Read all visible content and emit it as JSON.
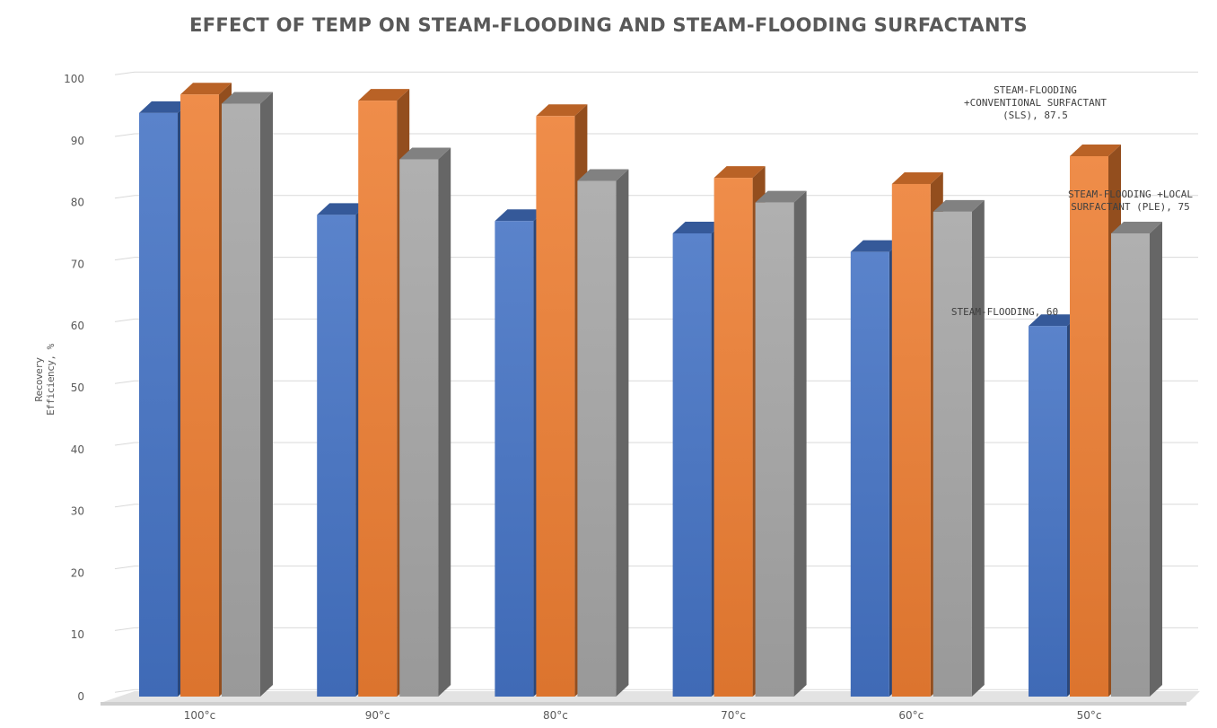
{
  "chart_data": {
    "type": "bar",
    "style": "3d-clustered-column",
    "title": "EFFECT OF TEMP ON STEAM-FLOODING AND STEAM-FLOODING SURFACTANTS",
    "ylabel": "Recovery Efficiency, %",
    "xlabel": "",
    "ylim": [
      0,
      100
    ],
    "yticks": [
      "0",
      "10",
      "20",
      "30",
      "40",
      "50",
      "60",
      "70",
      "80",
      "90",
      "100"
    ],
    "grid": true,
    "legend": "none",
    "categories": [
      "100°c",
      "90°c",
      "80°c",
      "70°c",
      "60°c",
      "50°c"
    ],
    "series": [
      {
        "color": "#4472C4",
        "values": [
          94.5,
          78,
          77,
          75,
          72,
          60
        ]
      },
      {
        "color": "#ED7D31",
        "values": [
          97.5,
          96.5,
          94,
          84,
          83,
          87.5
        ]
      },
      {
        "color": "#A5A5A5",
        "values": [
          96,
          87,
          83.5,
          80,
          78.5,
          75
        ]
      }
    ],
    "annotations": [
      {
        "series": 1,
        "category": 5,
        "lines": [
          "STEAM-FLOODING",
          "+CONVENTIONAL SURFACTANT",
          "(SLS), 87.5"
        ]
      },
      {
        "series": 2,
        "category": 5,
        "lines": [
          "STEAM-FLOODING +LOCAL",
          "SURFACTANT (PLE), 75"
        ]
      },
      {
        "series": 0,
        "category": 5,
        "lines": [
          "STEAM-FLOODING, 60"
        ]
      }
    ]
  }
}
